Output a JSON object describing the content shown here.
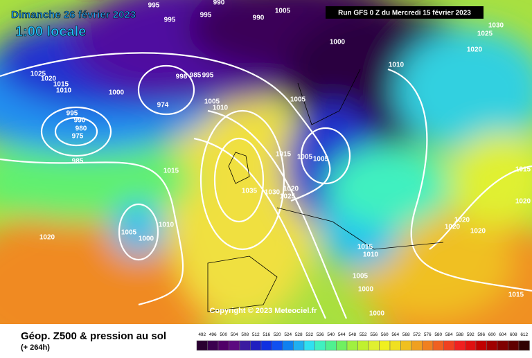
{
  "header": {
    "date": "Dimanche 26 février 2023",
    "time": "1:00 locale",
    "run": "Run GFS 0 Z du Mercredi 15 février 2023"
  },
  "map": {
    "copyright": "Copyright © 2023 Meteociel.fr",
    "isobar_labels": [
      995,
      995,
      995,
      990,
      990,
      1005,
      1000,
      1010,
      1030,
      1025,
      1020,
      1025,
      1020,
      1015,
      1010,
      1000,
      998,
      985,
      995,
      974,
      1005,
      1010,
      1005,
      995,
      990,
      980,
      975,
      985,
      1015,
      1005,
      1005,
      1015,
      1035,
      1030,
      1020,
      1025,
      1015,
      1020,
      1010,
      1005,
      1000,
      1020,
      1020,
      1020,
      1020,
      1015,
      1010,
      1005,
      1000,
      1000,
      1015
    ]
  },
  "footer": {
    "title": "Géop. Z500 & pression au sol",
    "lead": "(+ 264h)",
    "scale": {
      "labels": [
        492,
        496,
        500,
        504,
        508,
        512,
        516,
        520,
        524,
        528,
        532,
        536,
        540,
        544,
        548,
        552,
        556,
        560,
        564,
        568,
        572,
        576,
        580,
        584,
        588,
        592,
        596,
        600,
        604,
        608,
        612
      ],
      "colors": [
        "#2a0030",
        "#3c0050",
        "#500068",
        "#5c0a80",
        "#3a1aa0",
        "#2020c0",
        "#1030e0",
        "#1050f0",
        "#1080f0",
        "#20b0f0",
        "#30e0f0",
        "#40f0c0",
        "#50f090",
        "#70f060",
        "#a0f040",
        "#c0f030",
        "#e0f030",
        "#f0f020",
        "#f0e020",
        "#f0c020",
        "#f0a020",
        "#f08020",
        "#f06020",
        "#f04020",
        "#f02020",
        "#e01010",
        "#c00000",
        "#a00000",
        "#800000",
        "#600000",
        "#300000"
      ]
    }
  }
}
